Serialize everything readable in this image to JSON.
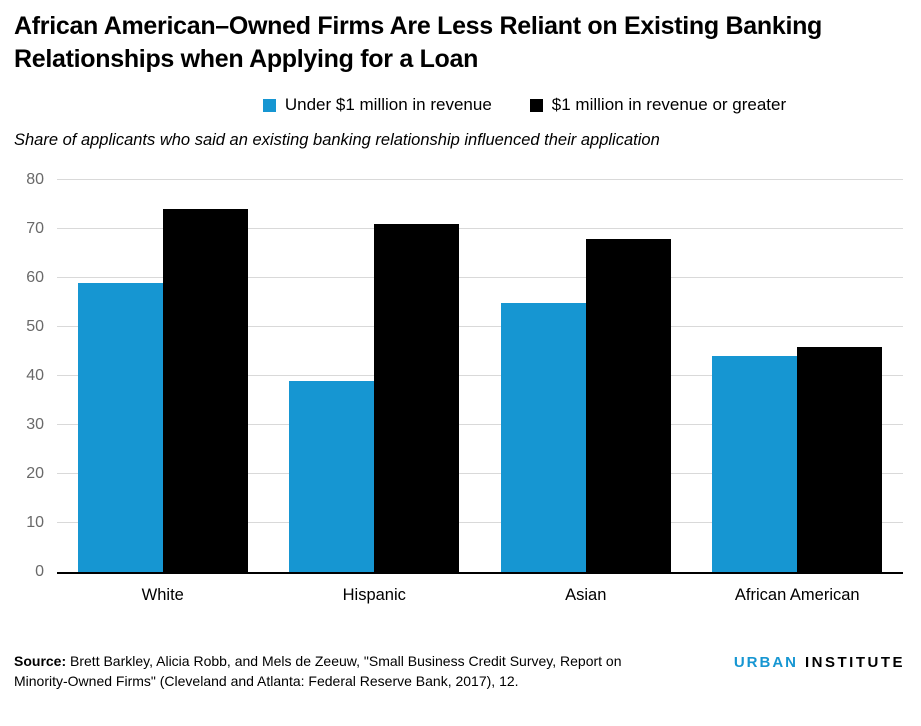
{
  "title": "African American–Owned Firms Are Less Reliant on Existing Banking Relationships when Applying for a Loan",
  "subtitle": "Share of applicants who said an existing banking relationship influenced their application",
  "legend": [
    {
      "label": "Under $1 million in revenue",
      "color": "#1696d2"
    },
    {
      "label": "$1 million in revenue or greater",
      "color": "#000000"
    }
  ],
  "chart_data": {
    "type": "bar",
    "categories": [
      "White",
      "Hispanic",
      "Asian",
      "African American"
    ],
    "series": [
      {
        "name": "Under $1 million in revenue",
        "color": "#1696d2",
        "values": [
          59,
          39,
          55,
          44
        ]
      },
      {
        "name": "$1 million in revenue or greater",
        "color": "#000000",
        "values": [
          74,
          71,
          68,
          46
        ]
      }
    ],
    "title": "African American–Owned Firms Are Less Reliant on Existing Banking Relationships when Applying for a Loan",
    "subtitle": "Share of applicants who said an existing banking relationship influenced their application",
    "xlabel": "",
    "ylabel": "",
    "ylim": [
      0,
      80
    ],
    "yticks": [
      0,
      10,
      20,
      30,
      40,
      50,
      60,
      70,
      80
    ],
    "grid": "horizontal",
    "gridline_color": "#d9d9d9",
    "axis_label_color": "#696969",
    "legend_position": "top-center"
  },
  "source": {
    "label": "Source:",
    "text": " Brett Barkley, Alicia Robb, and Mels de Zeeuw, \"Small Business Credit Survey, Report on Minority-Owned Firms\" (Cleveland and Atlanta: Federal Reserve Bank, 2017), 12."
  },
  "logo": {
    "part1": "URBAN",
    "part2": "INSTITUTE",
    "color1": "#1696d2",
    "color2": "#000000"
  }
}
